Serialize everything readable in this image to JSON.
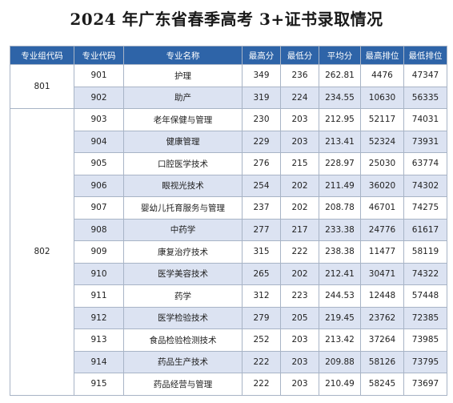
{
  "title": "2024 年广东省春季高考 3+证书录取情况",
  "columns": [
    "专业组代码",
    "专业代码",
    "专业名称",
    "最高分",
    "最低分",
    "平均分",
    "最高排位",
    "最低排位"
  ],
  "groups": [
    {
      "group_code": "801",
      "rows": [
        {
          "code": "901",
          "name": "护理",
          "max_score": "349",
          "min_score": "236",
          "avg_score": "262.81",
          "best_rank": "4476",
          "worst_rank": "47347"
        },
        {
          "code": "902",
          "name": "助产",
          "max_score": "319",
          "min_score": "224",
          "avg_score": "234.55",
          "best_rank": "10630",
          "worst_rank": "56335"
        }
      ]
    },
    {
      "group_code": "802",
      "rows": [
        {
          "code": "903",
          "name": "老年保健与管理",
          "max_score": "230",
          "min_score": "203",
          "avg_score": "212.95",
          "best_rank": "52117",
          "worst_rank": "74031"
        },
        {
          "code": "904",
          "name": "健康管理",
          "max_score": "229",
          "min_score": "203",
          "avg_score": "213.41",
          "best_rank": "52324",
          "worst_rank": "73931"
        },
        {
          "code": "905",
          "name": "口腔医学技术",
          "max_score": "276",
          "min_score": "215",
          "avg_score": "228.97",
          "best_rank": "25030",
          "worst_rank": "63774"
        },
        {
          "code": "906",
          "name": "眼视光技术",
          "max_score": "254",
          "min_score": "202",
          "avg_score": "211.49",
          "best_rank": "36020",
          "worst_rank": "74302"
        },
        {
          "code": "907",
          "name": "婴幼儿托育服务与管理",
          "max_score": "237",
          "min_score": "202",
          "avg_score": "208.78",
          "best_rank": "46701",
          "worst_rank": "74275"
        },
        {
          "code": "908",
          "name": "中药学",
          "max_score": "277",
          "min_score": "217",
          "avg_score": "233.38",
          "best_rank": "24776",
          "worst_rank": "61617"
        },
        {
          "code": "909",
          "name": "康复治疗技术",
          "max_score": "315",
          "min_score": "222",
          "avg_score": "238.38",
          "best_rank": "11477",
          "worst_rank": "58119"
        },
        {
          "code": "910",
          "name": "医学美容技术",
          "max_score": "265",
          "min_score": "202",
          "avg_score": "212.41",
          "best_rank": "30471",
          "worst_rank": "74322"
        },
        {
          "code": "911",
          "name": "药学",
          "max_score": "312",
          "min_score": "223",
          "avg_score": "244.53",
          "best_rank": "12448",
          "worst_rank": "57448"
        },
        {
          "code": "912",
          "name": "医学检验技术",
          "max_score": "279",
          "min_score": "205",
          "avg_score": "219.45",
          "best_rank": "23762",
          "worst_rank": "72385"
        },
        {
          "code": "913",
          "name": "食品检验检测技术",
          "max_score": "252",
          "min_score": "203",
          "avg_score": "213.42",
          "best_rank": "37264",
          "worst_rank": "73985"
        },
        {
          "code": "914",
          "name": "药品生产技术",
          "max_score": "222",
          "min_score": "203",
          "avg_score": "209.88",
          "best_rank": "58126",
          "worst_rank": "73795"
        },
        {
          "code": "915",
          "name": "药品经营与管理",
          "max_score": "222",
          "min_score": "203",
          "avg_score": "210.49",
          "best_rank": "58245",
          "worst_rank": "73697"
        }
      ]
    }
  ],
  "colors": {
    "header_bg": "#2e64a8",
    "header_text": "#ffffff",
    "stripe_bg": "#dce3f2",
    "border": "#a8b4c6"
  }
}
